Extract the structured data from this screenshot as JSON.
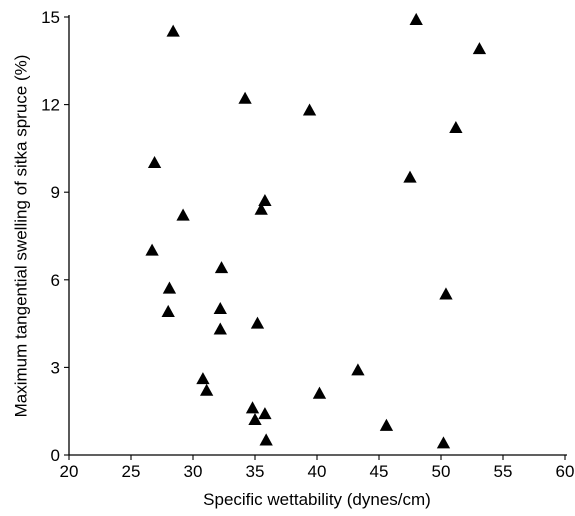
{
  "chart_data": {
    "type": "scatter",
    "title": "",
    "xlabel": "Specific wettability (dynes/cm)",
    "ylabel": "Maximum tangential swelling of sitka spruce (%)",
    "xlim": [
      20,
      60
    ],
    "ylim": [
      0,
      15
    ],
    "xticks": [
      "20",
      "25",
      "30",
      "35",
      "40",
      "45",
      "50",
      "55",
      "60"
    ],
    "yticks": [
      "0",
      "3",
      "6",
      "9",
      "12",
      "15"
    ],
    "grid": false,
    "legend": "none",
    "marker": "triangle",
    "marker_color": "#000000",
    "series": [
      {
        "points": [
          {
            "x": 28.4,
            "y": 14.5
          },
          {
            "x": 48.0,
            "y": 14.9
          },
          {
            "x": 53.1,
            "y": 13.9
          },
          {
            "x": 34.2,
            "y": 12.2
          },
          {
            "x": 39.4,
            "y": 11.8
          },
          {
            "x": 51.2,
            "y": 11.2
          },
          {
            "x": 26.9,
            "y": 10.0
          },
          {
            "x": 47.5,
            "y": 9.5
          },
          {
            "x": 35.8,
            "y": 8.7
          },
          {
            "x": 35.5,
            "y": 8.4
          },
          {
            "x": 29.2,
            "y": 8.2
          },
          {
            "x": 26.7,
            "y": 7.0
          },
          {
            "x": 32.3,
            "y": 6.4
          },
          {
            "x": 28.1,
            "y": 5.7
          },
          {
            "x": 50.4,
            "y": 5.5
          },
          {
            "x": 32.2,
            "y": 5.0
          },
          {
            "x": 28.0,
            "y": 4.9
          },
          {
            "x": 35.2,
            "y": 4.5
          },
          {
            "x": 32.2,
            "y": 4.3
          },
          {
            "x": 43.3,
            "y": 2.9
          },
          {
            "x": 30.8,
            "y": 2.6
          },
          {
            "x": 31.1,
            "y": 2.2
          },
          {
            "x": 40.2,
            "y": 2.1
          },
          {
            "x": 34.8,
            "y": 1.6
          },
          {
            "x": 35.8,
            "y": 1.4
          },
          {
            "x": 35.0,
            "y": 1.2
          },
          {
            "x": 45.6,
            "y": 1.0
          },
          {
            "x": 35.9,
            "y": 0.5
          },
          {
            "x": 50.2,
            "y": 0.4
          }
        ]
      }
    ]
  }
}
